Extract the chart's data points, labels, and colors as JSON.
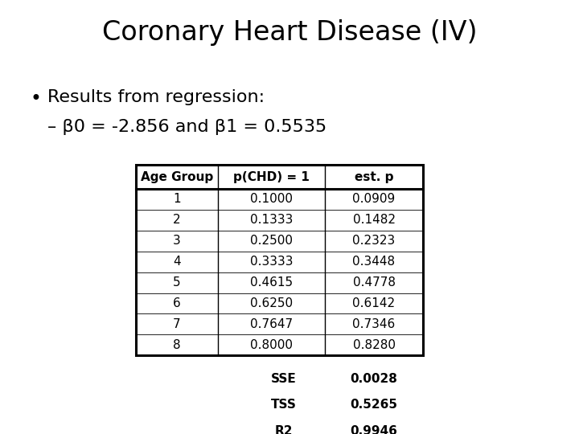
{
  "title": "Coronary Heart Disease (IV)",
  "bullet1": "Results from regression:",
  "bullet2": "– β0 = -2.856 and β1 = 0.5535",
  "table_headers": [
    "Age Group",
    "p(CHD) = 1",
    "est. p"
  ],
  "table_data": [
    [
      "1",
      "0.1000",
      "0.0909"
    ],
    [
      "2",
      "0.1333",
      "0.1482"
    ],
    [
      "3",
      "0.2500",
      "0.2323"
    ],
    [
      "4",
      "0.3333",
      "0.3448"
    ],
    [
      "5",
      "0.4615",
      "0.4778"
    ],
    [
      "6",
      "0.6250",
      "0.6142"
    ],
    [
      "7",
      "0.7647",
      "0.7346"
    ],
    [
      "8",
      "0.8000",
      "0.8280"
    ]
  ],
  "stats_labels": [
    "SSE",
    "TSS",
    "R2"
  ],
  "stats_values": [
    "0.0028",
    "0.5265",
    "0.9946"
  ],
  "background_color": "#ffffff",
  "text_color": "#000000",
  "title_fontsize": 24,
  "body_fontsize": 16,
  "table_fontsize": 11
}
